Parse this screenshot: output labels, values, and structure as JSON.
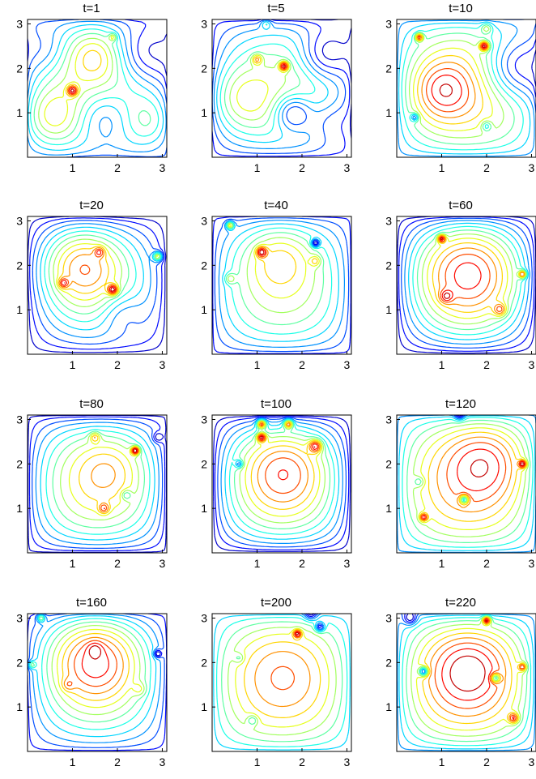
{
  "chart_data": {
    "type": "contour",
    "grid": {
      "rows": 4,
      "cols": 3
    },
    "axes": {
      "xlim": [
        0,
        3.1
      ],
      "ylim": [
        0,
        3.1
      ],
      "xticks": [
        "1",
        "2",
        "3"
      ],
      "yticks": [
        "1",
        "2",
        "3"
      ],
      "grid": false
    },
    "colormap": [
      "#00008f",
      "#0000ff",
      "#0080ff",
      "#00ffff",
      "#80ff80",
      "#ffff00",
      "#ff8000",
      "#ff0000",
      "#800000"
    ],
    "panels": [
      {
        "title": "t=1",
        "features": [
          {
            "x": 1.0,
            "y": 1.5,
            "amp": 1.0,
            "r": 0.08
          },
          {
            "x": 0.5,
            "y": 0.9,
            "amp": 0.55,
            "r": 0.45
          },
          {
            "x": 1.5,
            "y": 2.3,
            "amp": 0.5,
            "r": 0.4
          },
          {
            "x": 2.6,
            "y": 2.3,
            "amp": -0.7,
            "r": 0.5
          },
          {
            "x": 1.7,
            "y": 0.9,
            "amp": -0.6,
            "r": 0.45
          },
          {
            "x": 0.4,
            "y": 2.4,
            "amp": -0.3,
            "r": 0.35
          },
          {
            "x": 2.7,
            "y": 0.8,
            "amp": 0.3,
            "r": 0.35
          },
          {
            "x": 1.9,
            "y": 2.7,
            "amp": 0.6,
            "r": 0.06
          }
        ]
      },
      {
        "title": "t=5",
        "features": [
          {
            "x": 1.6,
            "y": 2.05,
            "amp": 1.0,
            "r": 0.07
          },
          {
            "x": 1.0,
            "y": 2.2,
            "amp": 0.6,
            "r": 0.08
          },
          {
            "x": 0.6,
            "y": 1.3,
            "amp": 0.4,
            "r": 0.5
          },
          {
            "x": 2.5,
            "y": 2.3,
            "amp": -0.6,
            "r": 0.4
          },
          {
            "x": 1.8,
            "y": 1.0,
            "amp": -0.7,
            "r": 0.3
          },
          {
            "x": 1.2,
            "y": 3.0,
            "amp": 0.4,
            "r": 0.08
          },
          {
            "x": 2.6,
            "y": 0.8,
            "amp": -0.3,
            "r": 0.35
          }
        ]
      },
      {
        "title": "t=10",
        "features": [
          {
            "x": 1.95,
            "y": 2.5,
            "amp": 1.0,
            "r": 0.07
          },
          {
            "x": 0.5,
            "y": 2.7,
            "amp": 0.9,
            "r": 0.06
          },
          {
            "x": 1.0,
            "y": 1.5,
            "amp": 0.5,
            "r": 0.45
          },
          {
            "x": 2.6,
            "y": 2.0,
            "amp": -0.7,
            "r": 0.5
          },
          {
            "x": 0.4,
            "y": 0.9,
            "amp": -0.6,
            "r": 0.06
          },
          {
            "x": 2.0,
            "y": 0.7,
            "amp": -0.4,
            "r": 0.08
          },
          {
            "x": 2.0,
            "y": 2.9,
            "amp": 0.4,
            "r": 0.08
          }
        ]
      },
      {
        "title": "t=20",
        "features": [
          {
            "x": 1.2,
            "y": 2.0,
            "amp": 0.7,
            "r": 0.6
          },
          {
            "x": 1.6,
            "y": 2.3,
            "amp": 0.5,
            "r": 0.08
          },
          {
            "x": 0.8,
            "y": 1.6,
            "amp": 0.6,
            "r": 0.08
          },
          {
            "x": 1.9,
            "y": 1.45,
            "amp": 0.9,
            "r": 0.08
          },
          {
            "x": 2.9,
            "y": 2.2,
            "amp": 0.9,
            "r": 0.07
          },
          {
            "x": 2.1,
            "y": 0.9,
            "amp": -0.3,
            "r": 0.35
          }
        ]
      },
      {
        "title": "t=40",
        "features": [
          {
            "x": 1.1,
            "y": 2.3,
            "amp": 0.8,
            "r": 0.08
          },
          {
            "x": 0.4,
            "y": 2.9,
            "amp": 0.9,
            "r": 0.06
          },
          {
            "x": 2.3,
            "y": 2.5,
            "amp": -0.9,
            "r": 0.06
          },
          {
            "x": 0.4,
            "y": 1.7,
            "amp": 0.4,
            "r": 0.08
          },
          {
            "x": 1.5,
            "y": 2.2,
            "amp": 0.35,
            "r": 0.5
          },
          {
            "x": 2.3,
            "y": 2.1,
            "amp": 0.4,
            "r": 0.08
          }
        ]
      },
      {
        "title": "t=60",
        "features": [
          {
            "x": 1.6,
            "y": 1.9,
            "amp": 0.6,
            "r": 0.8
          },
          {
            "x": 1.0,
            "y": 2.6,
            "amp": 0.8,
            "r": 0.06
          },
          {
            "x": 2.8,
            "y": 1.8,
            "amp": 0.8,
            "r": 0.06
          },
          {
            "x": 2.3,
            "y": 1.0,
            "amp": 0.5,
            "r": 0.1
          },
          {
            "x": 1.1,
            "y": 1.3,
            "amp": 0.4,
            "r": 0.1
          }
        ]
      },
      {
        "title": "t=80",
        "features": [
          {
            "x": 2.4,
            "y": 2.3,
            "amp": 0.9,
            "r": 0.06
          },
          {
            "x": 1.5,
            "y": 2.6,
            "amp": 0.4,
            "r": 0.08
          },
          {
            "x": 1.7,
            "y": 1.0,
            "amp": 0.4,
            "r": 0.08
          },
          {
            "x": 1.8,
            "y": 1.9,
            "amp": 0.2,
            "r": 0.5
          },
          {
            "x": 2.9,
            "y": 2.6,
            "amp": -0.3,
            "r": 0.08
          },
          {
            "x": 2.2,
            "y": 1.3,
            "amp": -0.3,
            "r": 0.08
          }
        ]
      },
      {
        "title": "t=100",
        "features": [
          {
            "x": 1.1,
            "y": 2.9,
            "amp": 0.8,
            "r": 0.07
          },
          {
            "x": 1.1,
            "y": 2.6,
            "amp": 0.7,
            "r": 0.07
          },
          {
            "x": 1.7,
            "y": 2.9,
            "amp": 0.7,
            "r": 0.07
          },
          {
            "x": 2.3,
            "y": 2.4,
            "amp": 0.6,
            "r": 0.1
          },
          {
            "x": 1.6,
            "y": 1.9,
            "amp": 0.3,
            "r": 0.6
          },
          {
            "x": 0.6,
            "y": 2.0,
            "amp": -0.4,
            "r": 0.06
          }
        ]
      },
      {
        "title": "t=120",
        "features": [
          {
            "x": 2.0,
            "y": 2.1,
            "amp": 0.4,
            "r": 0.6
          },
          {
            "x": 2.8,
            "y": 2.0,
            "amp": 0.8,
            "r": 0.06
          },
          {
            "x": 1.5,
            "y": 1.2,
            "amp": -0.8,
            "r": 0.07
          },
          {
            "x": 0.6,
            "y": 0.8,
            "amp": 0.7,
            "r": 0.06
          },
          {
            "x": 1.4,
            "y": 3.1,
            "amp": -0.5,
            "r": 0.08
          },
          {
            "x": 0.5,
            "y": 1.6,
            "amp": -0.3,
            "r": 0.08
          }
        ]
      },
      {
        "title": "t=160",
        "features": [
          {
            "x": 1.5,
            "y": 2.1,
            "amp": 0.9,
            "r": 0.7
          },
          {
            "x": 1.5,
            "y": 2.3,
            "amp": 0.3,
            "r": 0.12
          },
          {
            "x": 0.9,
            "y": 1.5,
            "amp": 0.3,
            "r": 0.1
          },
          {
            "x": 2.5,
            "y": 1.4,
            "amp": 0.3,
            "r": 0.1
          },
          {
            "x": 0.3,
            "y": 3.0,
            "amp": 0.8,
            "r": 0.06
          },
          {
            "x": 0.1,
            "y": 1.95,
            "amp": 0.6,
            "r": 0.06
          },
          {
            "x": 2.9,
            "y": 2.2,
            "amp": -0.7,
            "r": 0.06
          }
        ]
      },
      {
        "title": "t=200",
        "features": [
          {
            "x": 1.9,
            "y": 2.65,
            "amp": 0.9,
            "r": 0.06
          },
          {
            "x": 2.4,
            "y": 2.8,
            "amp": -0.8,
            "r": 0.07
          },
          {
            "x": 2.2,
            "y": 3.1,
            "amp": -0.6,
            "r": 0.1
          },
          {
            "x": 0.6,
            "y": 2.1,
            "amp": -0.3,
            "r": 0.08
          },
          {
            "x": 0.9,
            "y": 0.7,
            "amp": -0.4,
            "r": 0.08
          },
          {
            "x": 1.6,
            "y": 1.8,
            "amp": 0.2,
            "r": 0.7
          }
        ]
      },
      {
        "title": "t=220",
        "features": [
          {
            "x": 2.0,
            "y": 2.95,
            "amp": 0.9,
            "r": 0.06
          },
          {
            "x": 0.6,
            "y": 1.8,
            "amp": -0.8,
            "r": 0.07
          },
          {
            "x": 2.2,
            "y": 1.65,
            "amp": -0.7,
            "r": 0.07
          },
          {
            "x": 2.8,
            "y": 1.9,
            "amp": 0.6,
            "r": 0.06
          },
          {
            "x": 2.6,
            "y": 0.75,
            "amp": 0.6,
            "r": 0.08
          },
          {
            "x": 1.6,
            "y": 1.9,
            "amp": 0.35,
            "r": 0.6
          },
          {
            "x": 0.3,
            "y": 3.0,
            "amp": -0.5,
            "r": 0.1
          }
        ]
      }
    ]
  }
}
